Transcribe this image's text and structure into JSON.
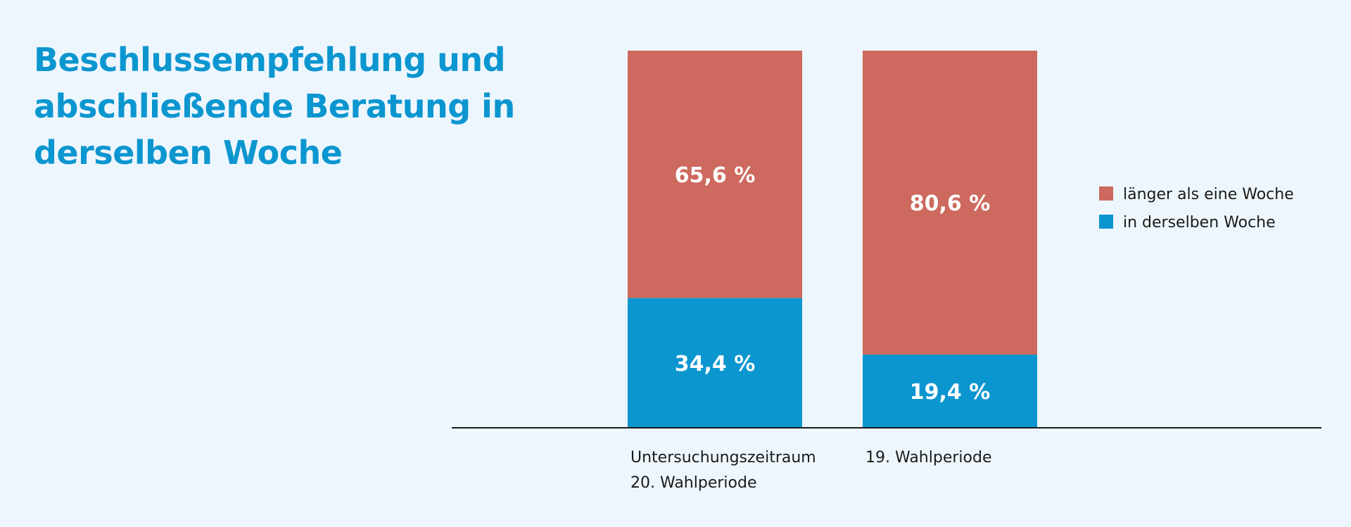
{
  "chart_data": {
    "type": "bar",
    "stacked": true,
    "title": "Beschlussempfehlung und abschließende Beratung in derselben Woche",
    "categories": [
      [
        "Untersuchungszeitraum",
        "20. Wahlperiode"
      ],
      [
        "19. Wahlperiode"
      ]
    ],
    "series": [
      {
        "name": "in derselben Woche",
        "values": [
          34.4,
          19.4
        ],
        "labels": [
          "34,4 %",
          "19,4 %"
        ],
        "color": "#0b96d0"
      },
      {
        "name": "länger als eine Woche",
        "values": [
          65.6,
          80.6
        ],
        "labels": [
          "65,6 %",
          "80,6 %"
        ],
        "color": "#cd695e"
      }
    ],
    "legend_order": [
      "länger als eine Woche",
      "in derselben Woche"
    ],
    "legend_position": "right",
    "ylim": [
      0,
      100
    ],
    "grid": false
  }
}
